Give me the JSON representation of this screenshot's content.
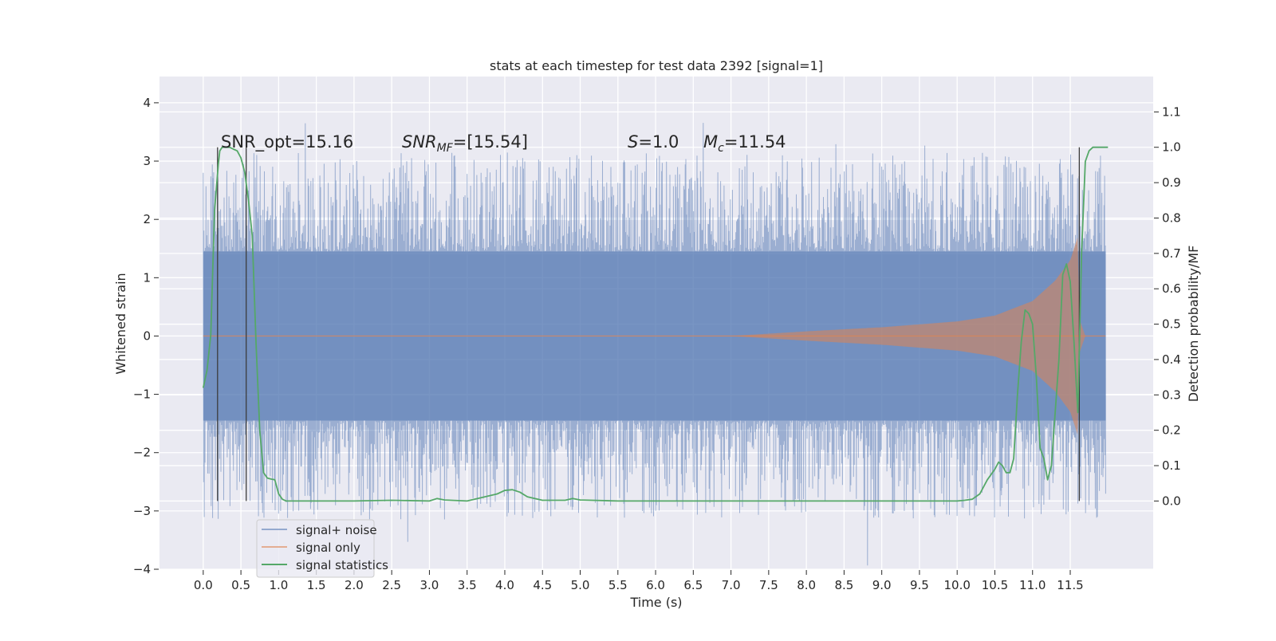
{
  "chart_data": {
    "type": "line",
    "title": "stats at each timestep for test data 2392 [signal=1]",
    "xlabel": "Time (s)",
    "ylabel_left": "Whitened strain",
    "ylabel_right": "Detection probability/MF",
    "xlim": [
      -0.58,
      12.6
    ],
    "ylim_left": [
      -4.0,
      4.45
    ],
    "ylim_right": [
      -0.1929,
      1.2
    ],
    "x_ticks": [
      "0.0",
      "0.5",
      "1.0",
      "1.5",
      "2.0",
      "2.5",
      "3.0",
      "3.5",
      "4.0",
      "4.5",
      "5.0",
      "5.5",
      "6.0",
      "6.5",
      "7.0",
      "7.5",
      "8.0",
      "8.5",
      "9.0",
      "9.5",
      "10.0",
      "10.5",
      "11.0",
      "11.5"
    ],
    "y_ticks_left": [
      "4",
      "3",
      "2",
      "1",
      "0",
      "−1",
      "−2",
      "−3",
      "−4"
    ],
    "y_ticks_right": [
      "1.1",
      "1.0",
      "0.9",
      "0.8",
      "0.7",
      "0.6",
      "0.5",
      "0.4",
      "0.3",
      "0.2",
      "0.1",
      "0.0"
    ],
    "grid": true,
    "legend_position": "lower-left",
    "annotations": {
      "snr_opt": "SNR_opt=15.16",
      "snr_mf_label": "SNR",
      "snr_mf_sub": "MF",
      "snr_mf_value": "=[15.54]",
      "s_label": "S",
      "s_value": "=1.0",
      "mc_label": "M",
      "mc_sub": "c",
      "mc_value": "=11.54"
    },
    "vlines_x": [
      0.19,
      0.57,
      11.62
    ],
    "series": [
      {
        "name": "signal+ noise",
        "color": "#4c72b0",
        "style": "dense noise, mostly within ±1.45, peaks up to ±3.9",
        "x_range": [
          0.0,
          11.97
        ],
        "envelope_core": [
          -1.45,
          1.45
        ]
      },
      {
        "name": "signal only",
        "color": "#dd8452",
        "style": "chirp",
        "x": [
          0.0,
          7.0,
          8.0,
          9.0,
          10.0,
          10.5,
          11.0,
          11.3,
          11.5,
          11.6,
          11.62,
          11.7,
          11.97
        ],
        "amplitude": [
          0.0,
          0.0,
          0.08,
          0.15,
          0.25,
          0.35,
          0.6,
          0.95,
          1.3,
          1.7,
          0.3,
          0.0,
          0.0
        ]
      },
      {
        "name": "signal statistics",
        "color": "#55a868",
        "x": [
          0.0,
          0.05,
          0.1,
          0.15,
          0.2,
          0.22,
          0.25,
          0.3,
          0.35,
          0.4,
          0.45,
          0.5,
          0.55,
          0.6,
          0.65,
          0.7,
          0.75,
          0.8,
          0.85,
          0.9,
          0.95,
          1.0,
          1.05,
          1.1,
          1.5,
          2.0,
          2.5,
          3.0,
          3.1,
          3.2,
          3.5,
          3.9,
          4.0,
          4.1,
          4.2,
          4.3,
          4.5,
          4.8,
          4.9,
          5.0,
          5.5,
          10.0,
          10.1,
          10.2,
          10.3,
          10.4,
          10.5,
          10.55,
          10.6,
          10.65,
          10.7,
          10.75,
          10.8,
          10.85,
          10.9,
          10.95,
          11.0,
          11.05,
          11.1,
          11.15,
          11.2,
          11.25,
          11.3,
          11.35,
          11.4,
          11.45,
          11.5,
          11.55,
          11.6,
          11.65,
          11.7,
          11.75,
          11.8,
          11.85,
          11.9,
          11.95,
          12.0
        ],
        "values": [
          0.32,
          0.37,
          0.47,
          0.82,
          0.95,
          0.99,
          1.0,
          1.0,
          1.0,
          0.995,
          0.99,
          0.97,
          0.93,
          0.85,
          0.75,
          0.45,
          0.2,
          0.08,
          0.065,
          0.062,
          0.06,
          0.02,
          0.005,
          0.0,
          0.0,
          0.0,
          0.002,
          0.0,
          0.007,
          0.003,
          0.0,
          0.02,
          0.03,
          0.032,
          0.025,
          0.012,
          0.002,
          0.002,
          0.007,
          0.003,
          0.0,
          0.0,
          0.002,
          0.005,
          0.02,
          0.06,
          0.09,
          0.11,
          0.1,
          0.08,
          0.08,
          0.12,
          0.3,
          0.45,
          0.54,
          0.53,
          0.5,
          0.35,
          0.15,
          0.12,
          0.06,
          0.1,
          0.25,
          0.4,
          0.64,
          0.67,
          0.62,
          0.45,
          0.25,
          0.7,
          0.96,
          0.99,
          1.0,
          1.0,
          1.0,
          1.0,
          1.0
        ]
      }
    ]
  },
  "colors": {
    "plot_bg": "#eaeaf2",
    "grid": "#ffffff",
    "noise": "#4c72b0",
    "signal": "#dd8452",
    "stat": "#55a868",
    "vline": "#3c3c3c"
  }
}
